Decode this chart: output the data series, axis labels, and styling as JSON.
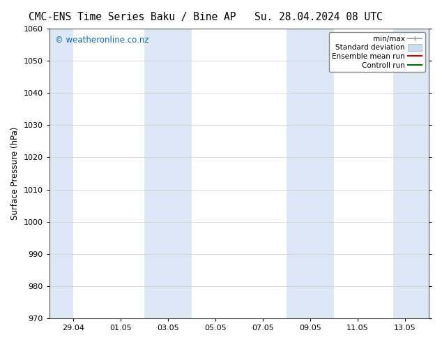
{
  "title_left": "CMC-ENS Time Series Baku / Bine AP",
  "title_right": "Su. 28.04.2024 08 UTC",
  "ylabel": "Surface Pressure (hPa)",
  "ylim": [
    970,
    1060
  ],
  "yticks": [
    970,
    980,
    990,
    1000,
    1010,
    1020,
    1030,
    1040,
    1050,
    1060
  ],
  "xlim": [
    0,
    16
  ],
  "xtick_labels": [
    "29.04",
    "01.05",
    "03.05",
    "05.05",
    "07.05",
    "09.05",
    "11.05",
    "13.05"
  ],
  "xtick_positions": [
    1,
    3,
    5,
    7,
    9,
    11,
    13,
    15
  ],
  "background_color": "#ffffff",
  "plot_bg_color": "#ffffff",
  "shaded_bands": [
    {
      "x_start": 0.0,
      "x_end": 1.0,
      "color": "#dce8f5"
    },
    {
      "x_start": 4.0,
      "x_end": 6.0,
      "color": "#dce8f5"
    },
    {
      "x_start": 10.0,
      "x_end": 12.0,
      "color": "#dce8f5"
    },
    {
      "x_start": 14.5,
      "x_end": 16.0,
      "color": "#dce8f5"
    }
  ],
  "watermark_text": "© weatheronline.co.nz",
  "watermark_color": "#1a6aaa",
  "watermark_fontsize": 8.5,
  "grid_color": "#cccccc",
  "grid_lw": 0.5,
  "title_fontsize": 10.5,
  "axis_fontsize": 8.5,
  "tick_fontsize": 8,
  "legend_fontsize": 7.5,
  "spine_color": "#555555",
  "spine_lw": 0.8
}
